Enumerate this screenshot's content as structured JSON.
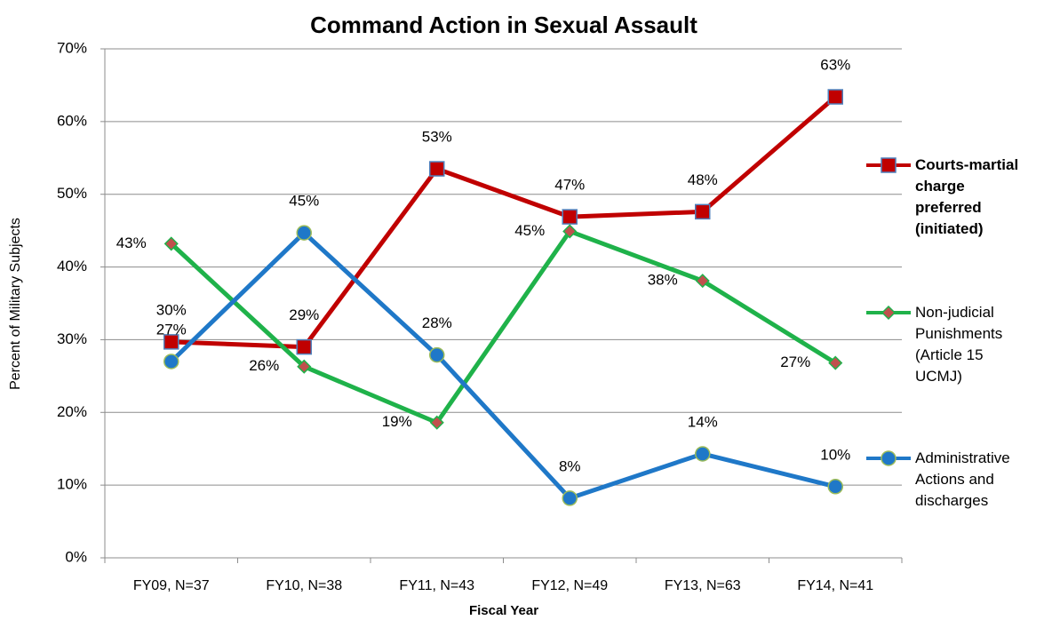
{
  "chart_data": {
    "type": "line",
    "title": "Command Action in Sexual Assault",
    "x_label": "Fiscal Year",
    "y_label": "Percent of Military Subjects",
    "categories": [
      "FY09, N=37",
      "FY10, N=38",
      "FY11, N=43",
      "FY12, N=49",
      "FY13, N=63",
      "FY14, N=41"
    ],
    "series": [
      {
        "name": "Courts-martial charge preferred (initiated)",
        "color": "#c00000",
        "marker": "square",
        "values": [
          29.7,
          29.0,
          53.5,
          46.9,
          47.6,
          63.4
        ],
        "value_labels": [
          "30%",
          "29%",
          "53%",
          "47%",
          "48%",
          "63%"
        ]
      },
      {
        "name": "Non-judicial Punishments (Article 15 UCMJ)",
        "color": "#1fb24a",
        "marker": "diamond",
        "values": [
          43.2,
          26.3,
          18.6,
          44.9,
          38.1,
          26.8
        ],
        "value_labels": [
          "43%",
          "26%",
          "19%",
          "45%",
          "38%",
          "27%"
        ]
      },
      {
        "name": "Administrative Actions and discharges",
        "color": "#1f78c8",
        "marker": "circle",
        "values": [
          27.0,
          44.7,
          27.9,
          8.2,
          14.3,
          9.8
        ],
        "value_labels": [
          "27%",
          "45%",
          "28%",
          "8%",
          "14%",
          "10%"
        ]
      }
    ],
    "ylim": [
      0,
      70
    ],
    "yticks": [
      {
        "value": 0,
        "label": "0%"
      },
      {
        "value": 10,
        "label": "10%"
      },
      {
        "value": 20,
        "label": "20%"
      },
      {
        "value": 30,
        "label": "30%"
      },
      {
        "value": 40,
        "label": "40%"
      },
      {
        "value": 50,
        "label": "50%"
      },
      {
        "value": 60,
        "label": "60%"
      },
      {
        "value": 70,
        "label": "70%"
      }
    ],
    "grid": true,
    "legend": "right"
  }
}
